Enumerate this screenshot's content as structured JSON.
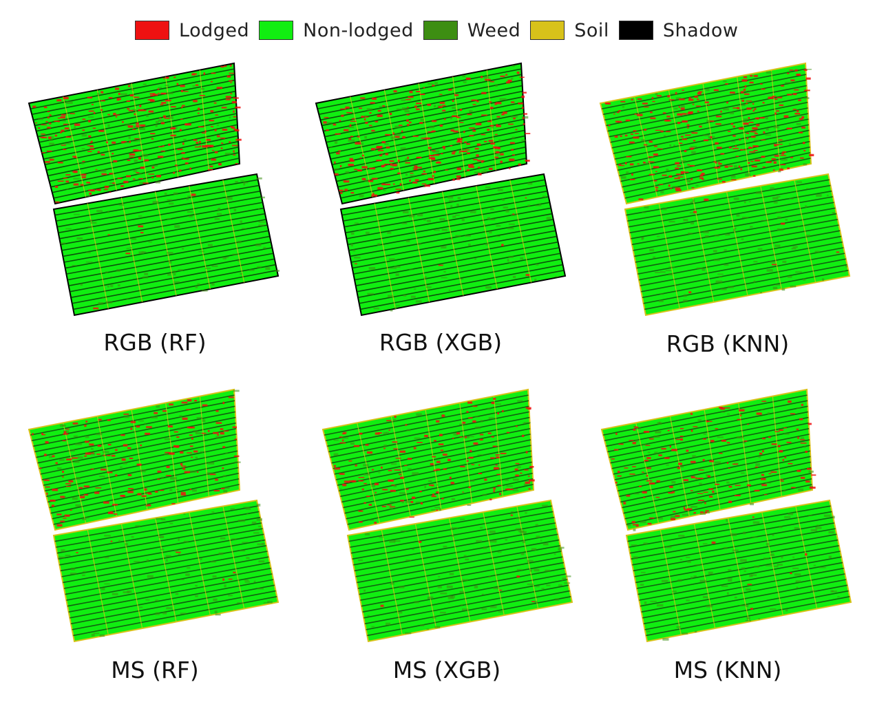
{
  "legend": [
    {
      "label": "Lodged",
      "color": "#ee1111"
    },
    {
      "label": "Non-lodged",
      "color": "#11ee11"
    },
    {
      "label": "Weed",
      "color": "#3d8e12"
    },
    {
      "label": "Soil",
      "color": "#d8c21a"
    },
    {
      "label": "Shadow",
      "color": "#000000"
    }
  ],
  "panels": [
    {
      "caption": "RGB (RF)",
      "edge_color": "#000000",
      "lodged_level": "high"
    },
    {
      "caption": "RGB (XGB)",
      "edge_color": "#000000",
      "lodged_level": "high"
    },
    {
      "caption": "RGB (KNN)",
      "edge_color": "#d8c21a",
      "lodged_level": "high"
    },
    {
      "caption": "MS (RF)",
      "edge_color": "#d8c21a",
      "lodged_level": "medium"
    },
    {
      "caption": "MS (XGB)",
      "edge_color": "#d8c21a",
      "lodged_level": "medium"
    },
    {
      "caption": "MS (KNN)",
      "edge_color": "#d8c21a",
      "lodged_level": "medium"
    }
  ]
}
